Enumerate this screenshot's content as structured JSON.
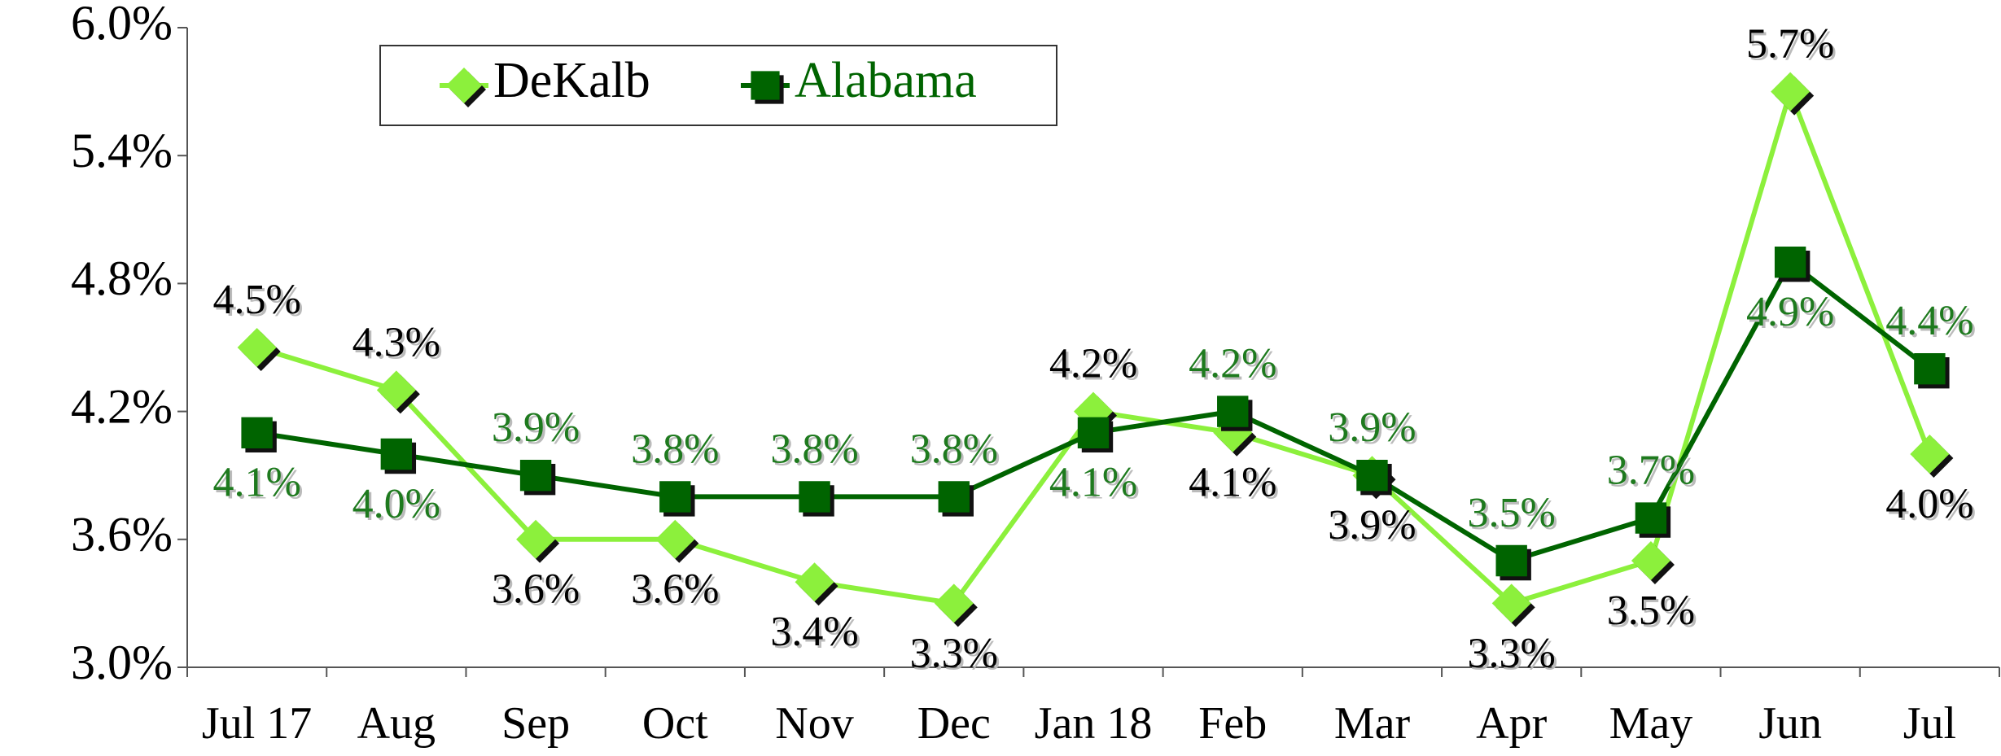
{
  "chart_data": {
    "type": "line",
    "categories": [
      "Jul 17",
      "Aug",
      "Sep",
      "Oct",
      "Nov",
      "Dec",
      "Jan 18",
      "Feb",
      "Mar",
      "Apr",
      "May",
      "Jun",
      "Jul"
    ],
    "series": [
      {
        "name": "DeKalb",
        "color": "#8cf03c",
        "label_color": "#000000",
        "marker": "diamond",
        "values": [
          4.5,
          4.3,
          3.6,
          3.6,
          3.4,
          3.3,
          4.2,
          4.1,
          3.9,
          3.3,
          3.5,
          5.7,
          4.0
        ],
        "value_labels": [
          "4.5%",
          "4.3%",
          "3.6%",
          "3.6%",
          "3.4%",
          "3.3%",
          "4.2%",
          "4.1%",
          "3.9%",
          "3.3%",
          "3.5%",
          "5.7%",
          "4.0%"
        ]
      },
      {
        "name": "Alabama",
        "color": "#006400",
        "label_color": "#1e7a1e",
        "marker": "square",
        "values": [
          4.1,
          4.0,
          3.9,
          3.8,
          3.8,
          3.8,
          4.1,
          4.2,
          3.9,
          3.5,
          3.7,
          4.9,
          4.4
        ],
        "value_labels": [
          "4.1%",
          "4.0%",
          "3.9%",
          "3.8%",
          "3.8%",
          "3.8%",
          "4.1%",
          "4.2%",
          "3.9%",
          "3.5%",
          "3.7%",
          "4.9%",
          "4.4%"
        ]
      }
    ],
    "ylim": [
      3.0,
      6.0
    ],
    "yticks": [
      {
        "value": 3.0,
        "label": "3.0%"
      },
      {
        "value": 3.6,
        "label": "3.6%"
      },
      {
        "value": 4.2,
        "label": "4.2%"
      },
      {
        "value": 4.8,
        "label": "4.8%"
      },
      {
        "value": 5.4,
        "label": "5.4%"
      },
      {
        "value": 6.0,
        "label": "6.0%"
      }
    ],
    "grid": false,
    "legend": "top-left"
  }
}
